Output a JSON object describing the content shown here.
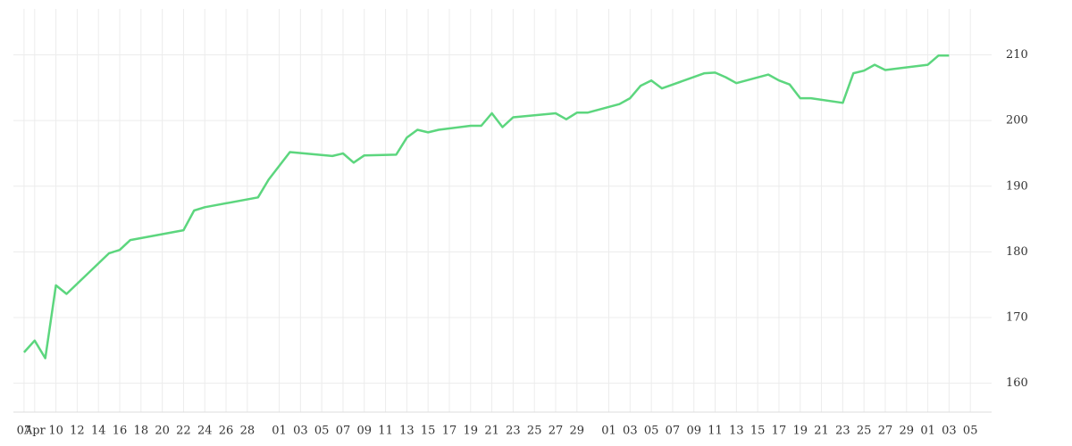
{
  "chart_data": {
    "type": "line",
    "x": [
      0,
      1,
      2,
      3,
      4,
      8,
      9,
      10,
      15,
      16,
      17,
      22,
      23,
      25,
      29,
      30,
      31,
      32,
      35,
      36,
      37,
      38,
      39,
      42,
      43,
      44,
      45,
      46,
      50,
      51,
      52,
      53,
      56,
      57,
      58,
      59,
      60,
      64,
      65,
      66,
      67,
      70,
      71,
      72,
      73,
      74,
      77,
      78,
      79,
      80,
      81,
      85,
      86,
      87
    ],
    "series": [
      {
        "color": "#5cd67e",
        "values": [
          164.7,
          166.5,
          163.8,
          174.9,
          173.6,
          179.8,
          180.3,
          181.8,
          183.3,
          186.3,
          186.8,
          188.3,
          191.0,
          195.2,
          194.6,
          195.0,
          193.6,
          194.7,
          194.8,
          197.4,
          198.6,
          198.2,
          198.6,
          199.2,
          199.2,
          201.1,
          199.0,
          200.5,
          201.1,
          200.2,
          201.2,
          201.2,
          202.5,
          203.4,
          205.3,
          206.1,
          204.9,
          207.2,
          207.3,
          206.6,
          205.7,
          207.0,
          206.1,
          205.5,
          203.4,
          203.4,
          202.7,
          207.2,
          207.6,
          208.5,
          207.7,
          208.5,
          209.9,
          209.9
        ]
      }
    ],
    "xlim": [
      -1,
      91
    ],
    "xticks": [
      {
        "value": 0,
        "label": "07"
      },
      {
        "value": 1,
        "label": "Apr"
      },
      {
        "value": 3,
        "label": "10"
      },
      {
        "value": 5,
        "label": "12"
      },
      {
        "value": 7,
        "label": "14"
      },
      {
        "value": 9,
        "label": "16"
      },
      {
        "value": 11,
        "label": "18"
      },
      {
        "value": 13,
        "label": "20"
      },
      {
        "value": 15,
        "label": "22"
      },
      {
        "value": 17,
        "label": "24"
      },
      {
        "value": 19,
        "label": "26"
      },
      {
        "value": 21,
        "label": "28"
      },
      {
        "value": 24,
        "label": "01"
      },
      {
        "value": 26,
        "label": "03"
      },
      {
        "value": 28,
        "label": "05"
      },
      {
        "value": 30,
        "label": "07"
      },
      {
        "value": 32,
        "label": "09"
      },
      {
        "value": 34,
        "label": "11"
      },
      {
        "value": 36,
        "label": "13"
      },
      {
        "value": 38,
        "label": "15"
      },
      {
        "value": 40,
        "label": "17"
      },
      {
        "value": 42,
        "label": "19"
      },
      {
        "value": 44,
        "label": "21"
      },
      {
        "value": 46,
        "label": "23"
      },
      {
        "value": 48,
        "label": "25"
      },
      {
        "value": 50,
        "label": "27"
      },
      {
        "value": 52,
        "label": "29"
      },
      {
        "value": 55,
        "label": "01"
      },
      {
        "value": 57,
        "label": "03"
      },
      {
        "value": 59,
        "label": "05"
      },
      {
        "value": 61,
        "label": "07"
      },
      {
        "value": 63,
        "label": "09"
      },
      {
        "value": 65,
        "label": "11"
      },
      {
        "value": 67,
        "label": "13"
      },
      {
        "value": 69,
        "label": "15"
      },
      {
        "value": 71,
        "label": "17"
      },
      {
        "value": 73,
        "label": "19"
      },
      {
        "value": 75,
        "label": "21"
      },
      {
        "value": 77,
        "label": "23"
      },
      {
        "value": 79,
        "label": "25"
      },
      {
        "value": 81,
        "label": "27"
      },
      {
        "value": 83,
        "label": "29"
      },
      {
        "value": 85,
        "label": "01"
      },
      {
        "value": 87,
        "label": "03"
      },
      {
        "value": 89,
        "label": "05"
      }
    ],
    "ylim": [
      155.6,
      217
    ],
    "yticks": [
      160,
      170,
      180,
      190,
      200,
      210
    ],
    "grid": true
  }
}
